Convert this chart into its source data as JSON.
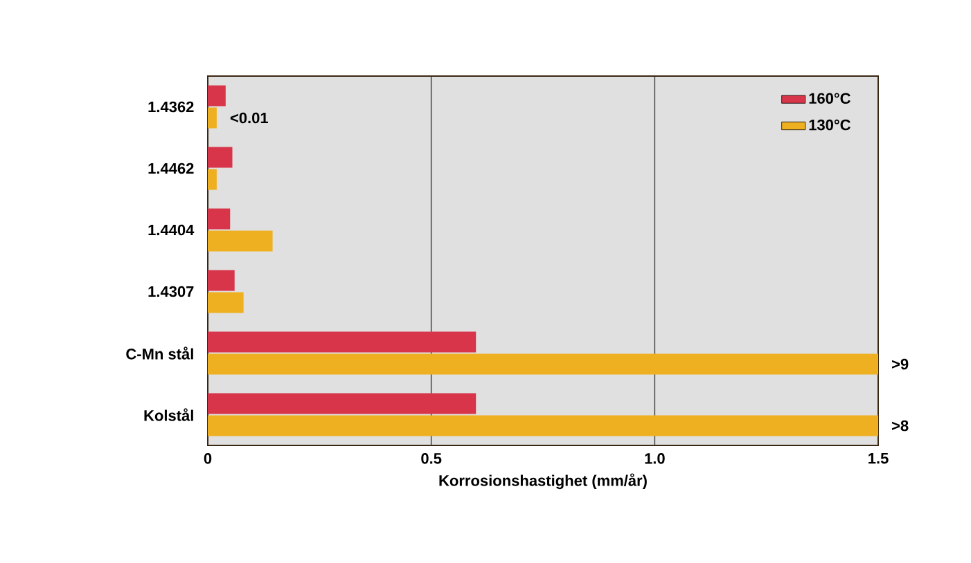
{
  "chart_data": {
    "type": "bar",
    "orientation": "horizontal",
    "xlabel": "Korrosionshastighet (mm/år)",
    "categories": [
      "1.4362",
      "1.4462",
      "1.4404",
      "1.4307",
      "C-Mn stål",
      "Kolstål"
    ],
    "series": [
      {
        "name": "160°C",
        "color": "#d8344a",
        "values": [
          0.04,
          0.055,
          0.05,
          0.06,
          0.6,
          0.6
        ]
      },
      {
        "name": "130°C",
        "color": "#eeb020",
        "values": [
          0.02,
          0.02,
          0.145,
          0.08,
          1.5,
          1.5
        ],
        "value_labels": [
          "<0.01",
          null,
          null,
          null,
          ">9",
          ">8"
        ]
      }
    ],
    "xlim": [
      0,
      1.5
    ],
    "xticks": [
      0,
      0.5,
      {
        "value": 1,
        "label": "1.0"
      },
      1.5
    ],
    "grid": "x",
    "legend": "top right"
  }
}
